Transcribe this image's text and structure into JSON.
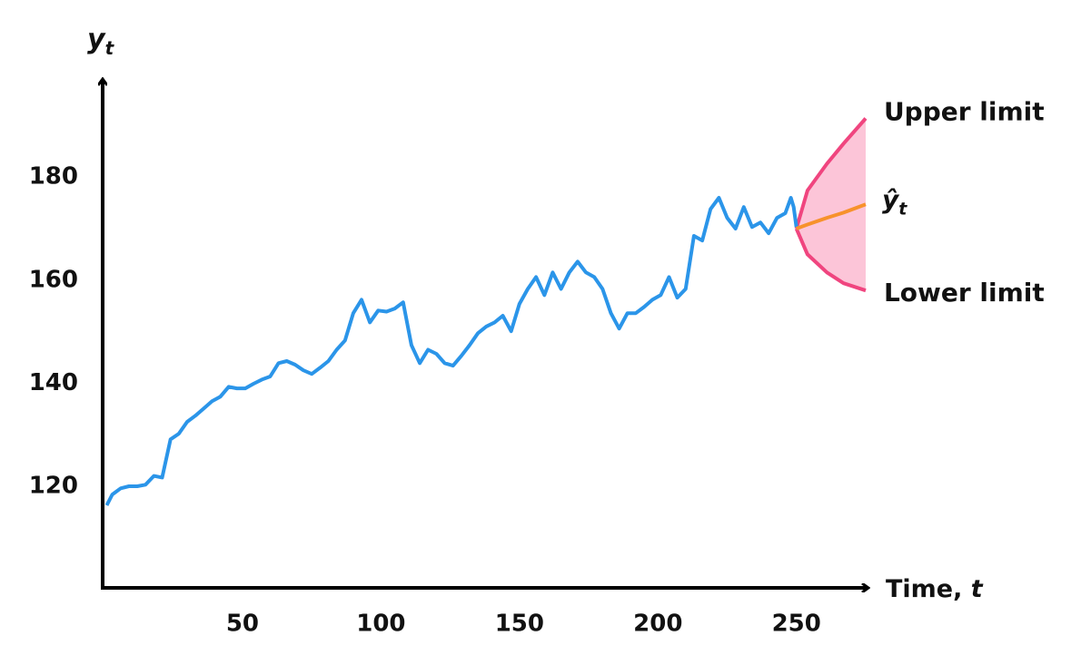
{
  "chart_data": {
    "type": "line",
    "y_label": {
      "text": "y",
      "subscript": "t"
    },
    "x_label": {
      "text": "Time,",
      "variable": "t"
    },
    "xlim": [
      0,
      276
    ],
    "ylim": [
      100,
      198
    ],
    "xticks": [
      50,
      100,
      150,
      200,
      250
    ],
    "yticks": [
      120,
      140,
      160,
      180
    ],
    "series": [
      {
        "color": "#2b95e9",
        "x": [
          1,
          3,
          6,
          9,
          12,
          15,
          18,
          21,
          24,
          27,
          30,
          33,
          36,
          39,
          42,
          45,
          48,
          51,
          54,
          57,
          60,
          63,
          66,
          69,
          72,
          75,
          78,
          81,
          84,
          87,
          90,
          93,
          96,
          99,
          102,
          105,
          108,
          111,
          114,
          117,
          120,
          123,
          126,
          129,
          132,
          135,
          138,
          141,
          144,
          147,
          150,
          153,
          156,
          159,
          162,
          165,
          168,
          171,
          174,
          177,
          180,
          183,
          186,
          189,
          192,
          195,
          198,
          201,
          204,
          207,
          210,
          213,
          216,
          219,
          222,
          225,
          228,
          231,
          234,
          237,
          240,
          243,
          246,
          248,
          249,
          250
        ],
        "values": [
          116.3,
          118.4,
          119.6,
          120,
          120,
          120.3,
          122,
          121.7,
          129.1,
          130.2,
          132.5,
          133.7,
          135.1,
          136.5,
          137.4,
          139.3,
          139,
          139,
          139.9,
          140.7,
          141.3,
          143.9,
          144.3,
          143.6,
          142.5,
          141.8,
          143,
          144.3,
          146.5,
          148.3,
          153.6,
          156.2,
          151.8,
          154.1,
          153.9,
          154.5,
          155.7,
          147.4,
          143.9,
          146.5,
          145.7,
          143.9,
          143.4,
          145.3,
          147.4,
          149.7,
          151,
          151.8,
          153.1,
          150.1,
          155.4,
          158.3,
          160.6,
          157.1,
          161.5,
          158.3,
          161.5,
          163.6,
          161.5,
          160.6,
          158.3,
          153.6,
          150.6,
          153.6,
          153.6,
          154.8,
          156.2,
          157.1,
          160.6,
          156.6,
          158.3,
          168.6,
          167.7,
          173.8,
          176,
          172.1,
          170,
          174.2,
          170.3,
          171.2,
          169.1,
          172.1,
          173,
          176,
          174.2,
          170.3
        ]
      },
      {
        "name": "ŷ",
        "name_subscript": "t",
        "color": "#f7922c",
        "x": [
          250,
          254,
          261,
          267,
          275
        ],
        "values": [
          170,
          170.8,
          172.1,
          173.1,
          174.7
        ]
      }
    ],
    "interval": {
      "color": "#f0457f",
      "fill": "#fcc5d8",
      "x": [
        250,
        254,
        261,
        267,
        275
      ],
      "upper": {
        "name": "Upper limit",
        "values": [
          170,
          177.4,
          182.6,
          186.5,
          191.4
        ]
      },
      "lower": {
        "name": "Lower limit",
        "values": [
          170,
          165,
          161.5,
          159.4,
          158
        ]
      }
    }
  }
}
